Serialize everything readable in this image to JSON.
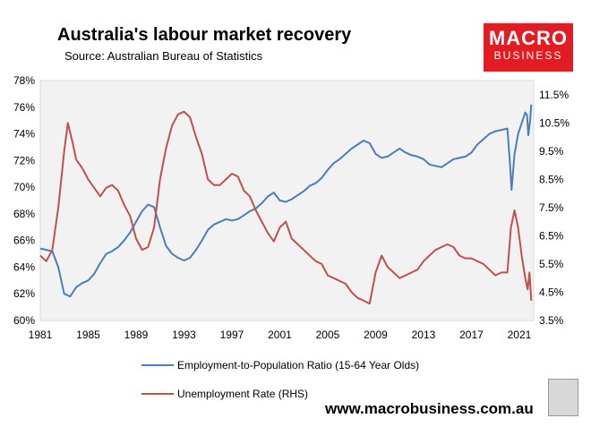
{
  "title": "Australia's labour market recovery",
  "subtitle": "Source: Australian Bureau of Statistics",
  "logo": {
    "line1": "MACRO",
    "line2": "BUSINESS"
  },
  "website": "www.macrobusiness.com.au",
  "colors": {
    "employment": "#4a7ebb",
    "unemployment": "#c0504d",
    "plot_bg": "#f2f2f2",
    "logo_bg": "#e31b23"
  },
  "chart_data": {
    "type": "line",
    "title": "Australia's labour market recovery",
    "subtitle": "Source: Australian Bureau of Statistics",
    "xlim": [
      1981,
      2022.2
    ],
    "x_ticks": [
      "1981",
      "1985",
      "1989",
      "1993",
      "1997",
      "2001",
      "2005",
      "2009",
      "2013",
      "2017",
      "2021"
    ],
    "y_left": {
      "min": 60,
      "max": 78,
      "ticks": [
        "60%",
        "62%",
        "64%",
        "66%",
        "68%",
        "70%",
        "72%",
        "74%",
        "76%",
        "78%"
      ]
    },
    "y_right": {
      "min": 3.5,
      "max": 12.0,
      "ticks": [
        "3.5%",
        "4.5%",
        "5.5%",
        "6.5%",
        "7.5%",
        "8.5%",
        "9.5%",
        "10.5%",
        "11.5%"
      ]
    },
    "grid": false,
    "legend_position": "bottom",
    "series": [
      {
        "name": "Employment-to-Population Ratio (15-64 Year Olds)",
        "axis": "left",
        "color": "#4a7ebb",
        "points": [
          [
            1981.0,
            65.4
          ],
          [
            1981.5,
            65.3
          ],
          [
            1982.0,
            65.2
          ],
          [
            1982.5,
            64.0
          ],
          [
            1983.0,
            62.0
          ],
          [
            1983.5,
            61.8
          ],
          [
            1984.0,
            62.5
          ],
          [
            1984.5,
            62.8
          ],
          [
            1985.0,
            63.0
          ],
          [
            1985.5,
            63.5
          ],
          [
            1986.0,
            64.3
          ],
          [
            1986.5,
            65.0
          ],
          [
            1987.0,
            65.2
          ],
          [
            1987.5,
            65.5
          ],
          [
            1988.0,
            66.0
          ],
          [
            1988.5,
            66.6
          ],
          [
            1989.0,
            67.4
          ],
          [
            1989.5,
            68.2
          ],
          [
            1990.0,
            68.7
          ],
          [
            1990.5,
            68.5
          ],
          [
            1991.0,
            67.0
          ],
          [
            1991.5,
            65.6
          ],
          [
            1992.0,
            65.0
          ],
          [
            1992.5,
            64.7
          ],
          [
            1993.0,
            64.5
          ],
          [
            1993.5,
            64.7
          ],
          [
            1994.0,
            65.3
          ],
          [
            1994.5,
            66.0
          ],
          [
            1995.0,
            66.8
          ],
          [
            1995.5,
            67.2
          ],
          [
            1996.0,
            67.4
          ],
          [
            1996.5,
            67.6
          ],
          [
            1997.0,
            67.5
          ],
          [
            1997.5,
            67.6
          ],
          [
            1998.0,
            67.9
          ],
          [
            1998.5,
            68.2
          ],
          [
            1999.0,
            68.4
          ],
          [
            1999.5,
            68.8
          ],
          [
            2000.0,
            69.3
          ],
          [
            2000.5,
            69.6
          ],
          [
            2001.0,
            69.0
          ],
          [
            2001.5,
            68.9
          ],
          [
            2002.0,
            69.1
          ],
          [
            2002.5,
            69.4
          ],
          [
            2003.0,
            69.7
          ],
          [
            2003.5,
            70.1
          ],
          [
            2004.0,
            70.3
          ],
          [
            2004.5,
            70.7
          ],
          [
            2005.0,
            71.3
          ],
          [
            2005.5,
            71.8
          ],
          [
            2006.0,
            72.1
          ],
          [
            2006.5,
            72.5
          ],
          [
            2007.0,
            72.9
          ],
          [
            2007.5,
            73.2
          ],
          [
            2008.0,
            73.5
          ],
          [
            2008.5,
            73.3
          ],
          [
            2009.0,
            72.5
          ],
          [
            2009.5,
            72.2
          ],
          [
            2010.0,
            72.3
          ],
          [
            2010.5,
            72.6
          ],
          [
            2011.0,
            72.9
          ],
          [
            2011.5,
            72.6
          ],
          [
            2012.0,
            72.4
          ],
          [
            2012.5,
            72.3
          ],
          [
            2013.0,
            72.1
          ],
          [
            2013.5,
            71.7
          ],
          [
            2014.0,
            71.6
          ],
          [
            2014.5,
            71.5
          ],
          [
            2015.0,
            71.8
          ],
          [
            2015.5,
            72.1
          ],
          [
            2016.0,
            72.2
          ],
          [
            2016.5,
            72.3
          ],
          [
            2017.0,
            72.6
          ],
          [
            2017.5,
            73.2
          ],
          [
            2018.0,
            73.6
          ],
          [
            2018.5,
            74.0
          ],
          [
            2019.0,
            74.2
          ],
          [
            2019.5,
            74.3
          ],
          [
            2020.0,
            74.4
          ],
          [
            2020.2,
            72.0
          ],
          [
            2020.35,
            69.8
          ],
          [
            2020.6,
            72.5
          ],
          [
            2020.9,
            74.0
          ],
          [
            2021.2,
            74.8
          ],
          [
            2021.5,
            75.6
          ],
          [
            2021.65,
            75.4
          ],
          [
            2021.75,
            73.9
          ],
          [
            2021.9,
            75.0
          ],
          [
            2022.0,
            76.2
          ]
        ]
      },
      {
        "name": "Unemployment Rate (RHS)",
        "axis": "right",
        "color": "#c0504d",
        "points": [
          [
            1981.0,
            5.8
          ],
          [
            1981.5,
            5.6
          ],
          [
            1982.0,
            6.0
          ],
          [
            1982.5,
            7.5
          ],
          [
            1983.0,
            9.5
          ],
          [
            1983.3,
            10.5
          ],
          [
            1983.7,
            9.8
          ],
          [
            1984.0,
            9.2
          ],
          [
            1984.5,
            8.9
          ],
          [
            1985.0,
            8.5
          ],
          [
            1985.5,
            8.2
          ],
          [
            1986.0,
            7.9
          ],
          [
            1986.5,
            8.2
          ],
          [
            1987.0,
            8.3
          ],
          [
            1987.5,
            8.1
          ],
          [
            1988.0,
            7.6
          ],
          [
            1988.5,
            7.2
          ],
          [
            1989.0,
            6.4
          ],
          [
            1989.5,
            6.0
          ],
          [
            1990.0,
            6.1
          ],
          [
            1990.5,
            6.8
          ],
          [
            1991.0,
            8.5
          ],
          [
            1991.5,
            9.6
          ],
          [
            1992.0,
            10.4
          ],
          [
            1992.5,
            10.8
          ],
          [
            1993.0,
            10.9
          ],
          [
            1993.5,
            10.7
          ],
          [
            1994.0,
            10.0
          ],
          [
            1994.5,
            9.4
          ],
          [
            1995.0,
            8.5
          ],
          [
            1995.5,
            8.3
          ],
          [
            1996.0,
            8.3
          ],
          [
            1996.5,
            8.5
          ],
          [
            1997.0,
            8.7
          ],
          [
            1997.5,
            8.6
          ],
          [
            1998.0,
            8.1
          ],
          [
            1998.5,
            7.9
          ],
          [
            1999.0,
            7.4
          ],
          [
            1999.5,
            7.0
          ],
          [
            2000.0,
            6.6
          ],
          [
            2000.5,
            6.3
          ],
          [
            2001.0,
            6.8
          ],
          [
            2001.5,
            7.0
          ],
          [
            2002.0,
            6.4
          ],
          [
            2002.5,
            6.2
          ],
          [
            2003.0,
            6.0
          ],
          [
            2003.5,
            5.8
          ],
          [
            2004.0,
            5.6
          ],
          [
            2004.5,
            5.5
          ],
          [
            2005.0,
            5.1
          ],
          [
            2005.5,
            5.0
          ],
          [
            2006.0,
            4.9
          ],
          [
            2006.5,
            4.8
          ],
          [
            2007.0,
            4.5
          ],
          [
            2007.5,
            4.3
          ],
          [
            2008.0,
            4.2
          ],
          [
            2008.5,
            4.1
          ],
          [
            2009.0,
            5.2
          ],
          [
            2009.5,
            5.8
          ],
          [
            2010.0,
            5.4
          ],
          [
            2010.5,
            5.2
          ],
          [
            2011.0,
            5.0
          ],
          [
            2011.5,
            5.1
          ],
          [
            2012.0,
            5.2
          ],
          [
            2012.5,
            5.3
          ],
          [
            2013.0,
            5.6
          ],
          [
            2013.5,
            5.8
          ],
          [
            2014.0,
            6.0
          ],
          [
            2014.5,
            6.1
          ],
          [
            2015.0,
            6.2
          ],
          [
            2015.5,
            6.1
          ],
          [
            2016.0,
            5.8
          ],
          [
            2016.5,
            5.7
          ],
          [
            2017.0,
            5.7
          ],
          [
            2017.5,
            5.6
          ],
          [
            2018.0,
            5.5
          ],
          [
            2018.5,
            5.3
          ],
          [
            2019.0,
            5.1
          ],
          [
            2019.5,
            5.2
          ],
          [
            2020.0,
            5.2
          ],
          [
            2020.3,
            6.8
          ],
          [
            2020.6,
            7.4
          ],
          [
            2020.9,
            6.8
          ],
          [
            2021.2,
            5.8
          ],
          [
            2021.5,
            5.0
          ],
          [
            2021.7,
            4.6
          ],
          [
            2021.85,
            5.2
          ],
          [
            2022.0,
            4.2
          ]
        ]
      }
    ]
  }
}
